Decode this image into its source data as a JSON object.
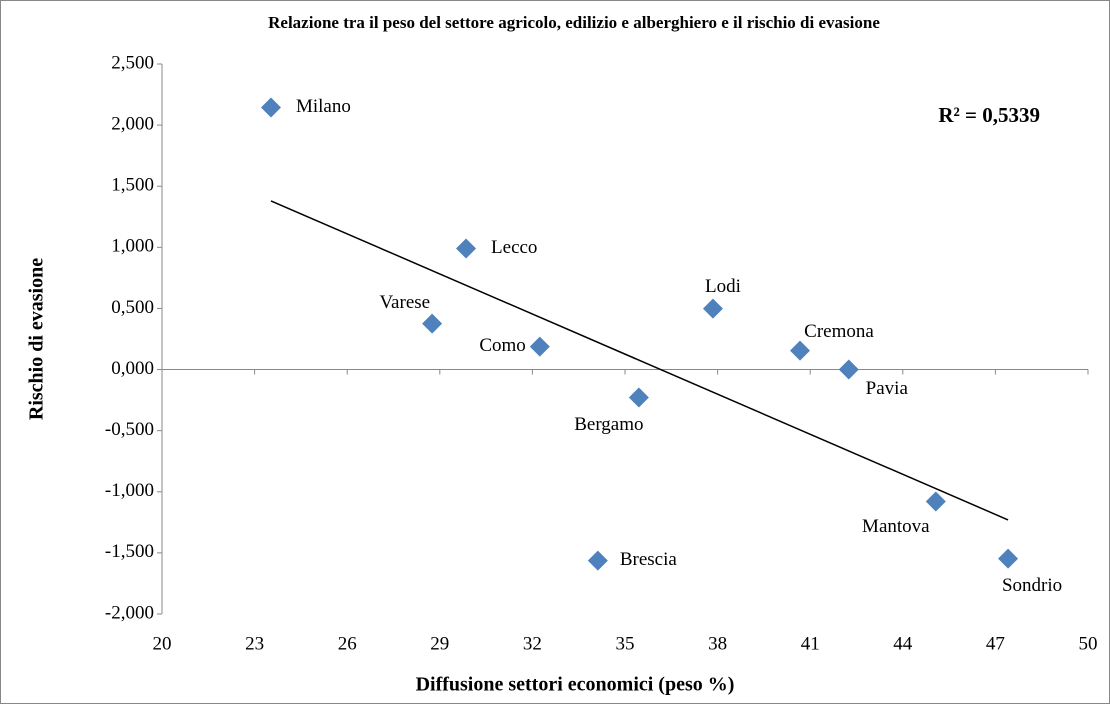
{
  "chart_data": {
    "type": "scatter",
    "title": "Relazione tra il peso del settore agricolo, edilizio e alberghiero e il rischio di evasione",
    "xlabel": "Diffusione settori economici (peso %)",
    "ylabel": "Rischio di evasione",
    "annotation": "R² = 0,5339",
    "labels": [
      "Milano",
      "Lecco",
      "Varese",
      "Como",
      "Bergamo",
      "Brescia",
      "Lodi",
      "Cremona",
      "Pavia",
      "Mantova",
      "Sondrio"
    ],
    "x": [
      23.53,
      29.85,
      28.75,
      32.24,
      35.45,
      34.12,
      37.85,
      40.67,
      42.25,
      45.07,
      47.41
    ],
    "y": [
      2.144,
      0.99,
      0.376,
      0.188,
      -0.229,
      -1.563,
      0.499,
      0.155,
      0.0,
      -1.08,
      -1.547
    ],
    "color": "#4f81bd",
    "trendline": {
      "x": [
        23.53,
        47.41
      ],
      "y": [
        1.38,
        -1.23
      ],
      "color": "#000000"
    },
    "xlim": [
      20,
      50
    ],
    "xticks": [
      20,
      23,
      26,
      29,
      32,
      35,
      38,
      41,
      44,
      47,
      50
    ],
    "ylim": [
      -2,
      2.5
    ],
    "yticks": [
      {
        "value": -2,
        "label": "-2,000"
      },
      {
        "value": -1.5,
        "label": "-1,500"
      },
      {
        "value": -1,
        "label": "-1,000"
      },
      {
        "value": -0.5,
        "label": "-0,500"
      },
      {
        "value": 0,
        "label": "0,000"
      },
      {
        "value": 0.5,
        "label": "0,500"
      },
      {
        "value": 1,
        "label": "1,000"
      },
      {
        "value": 1.5,
        "label": "1,500"
      },
      {
        "value": 2,
        "label": "2,000"
      },
      {
        "value": 2.5,
        "label": "2,500"
      }
    ],
    "grid": false
  }
}
